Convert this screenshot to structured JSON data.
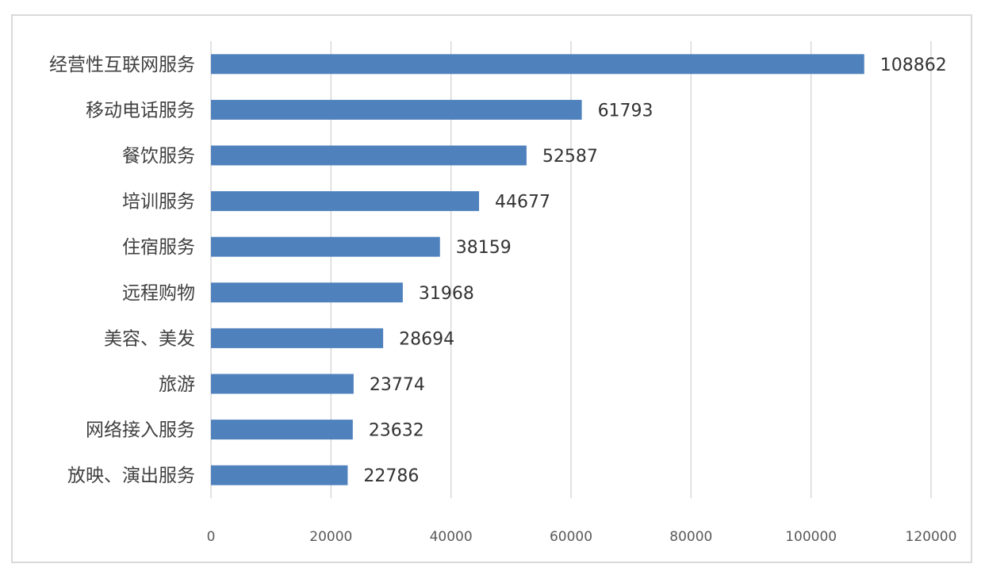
{
  "chart_data": {
    "type": "bar",
    "orientation": "horizontal",
    "categories": [
      "经营性互联网服务",
      "移动电话服务",
      "餐饮服务",
      "培训服务",
      "住宿服务",
      "远程购物",
      "美容、美发",
      "旅游",
      "网络接入服务",
      "放映、演出服务"
    ],
    "values": [
      108862,
      61793,
      52587,
      44677,
      38159,
      31968,
      28694,
      23774,
      23632,
      22786
    ],
    "value_labels": [
      "108862",
      "61793",
      "52587",
      "44677",
      "38159",
      "31968",
      "28694",
      "23774",
      "23632",
      "22786"
    ],
    "x_ticks": [
      "0",
      "20000",
      "40000",
      "60000",
      "80000",
      "100000",
      "120000"
    ],
    "xlim": [
      0,
      120000
    ],
    "grid": "vertical",
    "legend": "none",
    "title": "",
    "xlabel": "",
    "ylabel": "",
    "bar_color": "#4f81bd"
  }
}
